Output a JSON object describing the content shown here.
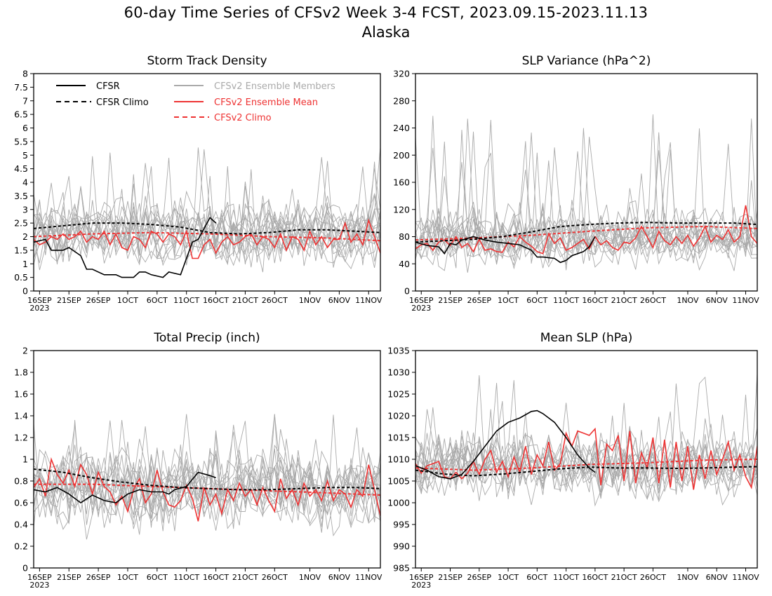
{
  "page": {
    "title": "60-day Time Series of CFSv2 Week 3-4 FCST, 2023.09.15-2023.11.13",
    "subtitle": "Alaska"
  },
  "colors": {
    "cfsr": "#000000",
    "members": "#aaaaaa",
    "ens_mean": "#ee3333",
    "cfsv2_climo": "#ee3333"
  },
  "legend": {
    "cfsr": "CFSR",
    "cfsr_climo": "CFSR Climo",
    "members": "CFSv2 Ensemble Members",
    "ens_mean": "CFSv2 Ensemble Mean",
    "cfsv2_climo": "CFSv2 Climo"
  },
  "x_axis": {
    "tick_labels": [
      "16SEP",
      "21SEP",
      "26SEP",
      "1OCT",
      "6OCT",
      "11OCT",
      "16OCT",
      "21OCT",
      "26OCT",
      "1NOV",
      "6NOV",
      "11NOV"
    ],
    "tick_days": [
      1,
      6,
      11,
      16,
      21,
      26,
      31,
      36,
      41,
      47,
      52,
      57
    ],
    "year_label": "2023",
    "day_range": [
      0,
      59
    ]
  },
  "chart_data": [
    {
      "type": "line",
      "title": "Storm Track Density",
      "ylim": [
        0,
        8
      ],
      "yticks": [
        "0",
        "0.5",
        "1",
        "1.5",
        "2",
        "2.5",
        "3",
        "3.5",
        "4",
        "4.5",
        "5",
        "5.5",
        "6",
        "6.5",
        "7",
        "7.5",
        "8"
      ],
      "member_spread": {
        "center": 2.1,
        "spread": 0.75,
        "peak": 5.3
      },
      "series": [
        {
          "name": "CFSR",
          "style": "solid",
          "color": "#000000",
          "x": [
            0,
            2,
            3,
            5,
            6,
            8,
            9,
            10,
            12,
            14,
            15,
            17,
            18,
            19,
            20,
            22,
            23,
            25,
            27,
            28,
            30,
            31
          ],
          "y": [
            1.8,
            1.9,
            1.5,
            1.5,
            1.6,
            1.3,
            0.8,
            0.8,
            0.6,
            0.6,
            0.5,
            0.5,
            0.7,
            0.7,
            0.6,
            0.5,
            0.7,
            0.6,
            1.8,
            1.9,
            2.7,
            2.5
          ]
        },
        {
          "name": "CFSR Climo",
          "style": "dashed",
          "color": "#000000",
          "x": [
            0,
            5,
            10,
            15,
            20,
            25,
            30,
            35,
            40,
            45,
            50,
            55,
            59
          ],
          "y": [
            2.3,
            2.4,
            2.5,
            2.5,
            2.45,
            2.35,
            2.15,
            2.1,
            2.15,
            2.25,
            2.25,
            2.2,
            2.15
          ]
        },
        {
          "name": "CFSv2 Ensemble Mean",
          "style": "solid",
          "color": "#ee3333",
          "x": [
            0,
            1,
            2,
            3,
            4,
            5,
            6,
            7,
            8,
            9,
            10,
            11,
            12,
            13,
            14,
            15,
            16,
            17,
            18,
            19,
            20,
            21,
            22,
            23,
            24,
            25,
            26,
            27,
            28,
            29,
            30,
            31,
            32,
            33,
            34,
            35,
            36,
            37,
            38,
            39,
            40,
            41,
            42,
            43,
            44,
            45,
            46,
            47,
            48,
            49,
            50,
            51,
            52,
            53,
            54,
            55,
            56,
            57,
            58,
            59
          ],
          "y": [
            1.9,
            1.7,
            1.8,
            2.0,
            1.9,
            2.1,
            1.9,
            2.0,
            2.2,
            1.8,
            2.0,
            1.9,
            2.2,
            1.7,
            2.1,
            1.6,
            1.5,
            2.0,
            1.9,
            1.6,
            2.2,
            2.1,
            1.8,
            2.1,
            2.0,
            1.7,
            2.2,
            1.2,
            1.2,
            1.7,
            1.9,
            1.4,
            1.8,
            2.0,
            1.7,
            1.8,
            2.0,
            2.1,
            1.7,
            2.0,
            1.9,
            1.6,
            2.1,
            1.5,
            2.0,
            1.9,
            1.5,
            2.2,
            1.7,
            2.0,
            1.6,
            1.9,
            1.9,
            2.5,
            1.8,
            2.1,
            1.7,
            2.6,
            2.0,
            1.4
          ]
        },
        {
          "name": "CFSv2 Climo",
          "style": "dashed",
          "color": "#ee3333",
          "x": [
            0,
            10,
            20,
            30,
            40,
            50,
            59
          ],
          "y": [
            2.0,
            2.1,
            2.15,
            2.1,
            2.0,
            1.95,
            1.85
          ]
        }
      ]
    },
    {
      "type": "line",
      "title": "SLP Variance (hPa^2)",
      "ylim": [
        0,
        320
      ],
      "yticks": [
        "0",
        "40",
        "80",
        "120",
        "160",
        "200",
        "240",
        "280",
        "320"
      ],
      "member_spread": {
        "center": 78,
        "spread": 25,
        "peak": 263
      },
      "series": [
        {
          "name": "CFSR",
          "style": "solid",
          "color": "#000000",
          "x": [
            0,
            2,
            4,
            5,
            6,
            7,
            8,
            10,
            12,
            14,
            16,
            18,
            20,
            21,
            22,
            24,
            25,
            26,
            27,
            28,
            29,
            30,
            31
          ],
          "y": [
            72,
            67,
            65,
            55,
            70,
            68,
            75,
            80,
            75,
            72,
            70,
            68,
            60,
            50,
            50,
            48,
            42,
            45,
            52,
            55,
            58,
            65,
            80
          ]
        },
        {
          "name": "CFSR Climo",
          "style": "dashed",
          "color": "#000000",
          "x": [
            0,
            5,
            10,
            15,
            20,
            25,
            30,
            35,
            40,
            45,
            50,
            55,
            59
          ],
          "y": [
            72,
            74,
            76,
            80,
            87,
            95,
            98,
            100,
            101,
            100,
            100,
            100,
            98
          ]
        },
        {
          "name": "CFSv2 Ensemble Mean",
          "style": "solid",
          "color": "#ee3333",
          "x": [
            0,
            1,
            2,
            3,
            4,
            5,
            6,
            7,
            8,
            9,
            10,
            11,
            12,
            13,
            14,
            15,
            16,
            17,
            18,
            19,
            20,
            21,
            22,
            23,
            24,
            25,
            26,
            27,
            28,
            29,
            30,
            31,
            32,
            33,
            34,
            35,
            36,
            37,
            38,
            39,
            40,
            41,
            42,
            43,
            44,
            45,
            46,
            47,
            48,
            49,
            50,
            51,
            52,
            53,
            54,
            55,
            56,
            57,
            58,
            59
          ],
          "y": [
            62,
            68,
            70,
            60,
            72,
            75,
            67,
            80,
            64,
            70,
            58,
            76,
            60,
            62,
            58,
            57,
            72,
            65,
            80,
            72,
            66,
            58,
            55,
            84,
            70,
            78,
            60,
            64,
            70,
            76,
            62,
            80,
            68,
            74,
            64,
            60,
            72,
            70,
            78,
            95,
            80,
            64,
            88,
            74,
            68,
            80,
            70,
            82,
            66,
            78,
            95,
            72,
            82,
            76,
            90,
            72,
            80,
            126,
            80,
            70
          ]
        },
        {
          "name": "CFSv2 Climo",
          "style": "dashed",
          "color": "#ee3333",
          "x": [
            0,
            10,
            20,
            30,
            40,
            50,
            59
          ],
          "y": [
            75,
            78,
            82,
            88,
            93,
            95,
            92
          ]
        }
      ]
    },
    {
      "type": "line",
      "title": "Total Precip (inch)",
      "ylim": [
        0,
        2
      ],
      "yticks": [
        "0",
        "0.2",
        "0.4",
        "0.6",
        "0.8",
        "1",
        "1.2",
        "1.4",
        "1.6",
        "1.8",
        "2"
      ],
      "member_spread": {
        "center": 0.72,
        "spread": 0.22,
        "peak": 1.42
      },
      "series": [
        {
          "name": "CFSR",
          "style": "solid",
          "color": "#000000",
          "x": [
            0,
            2,
            4,
            6,
            8,
            10,
            12,
            14,
            16,
            18,
            20,
            22,
            23,
            24,
            26,
            28,
            30,
            31
          ],
          "y": [
            0.72,
            0.7,
            0.74,
            0.68,
            0.6,
            0.67,
            0.62,
            0.6,
            0.68,
            0.72,
            0.7,
            0.7,
            0.68,
            0.72,
            0.75,
            0.88,
            0.85,
            0.83
          ]
        },
        {
          "name": "CFSR Climo",
          "style": "dashed",
          "color": "#000000",
          "x": [
            0,
            5,
            10,
            15,
            20,
            25,
            30,
            35,
            40,
            45,
            50,
            55,
            59
          ],
          "y": [
            0.91,
            0.88,
            0.83,
            0.79,
            0.76,
            0.74,
            0.73,
            0.72,
            0.72,
            0.73,
            0.74,
            0.74,
            0.73
          ]
        },
        {
          "name": "CFSv2 Ensemble Mean",
          "style": "solid",
          "color": "#ee3333",
          "x": [
            0,
            1,
            2,
            3,
            4,
            5,
            6,
            7,
            8,
            9,
            10,
            11,
            12,
            13,
            14,
            15,
            16,
            17,
            18,
            19,
            20,
            21,
            22,
            23,
            24,
            25,
            26,
            27,
            28,
            29,
            30,
            31,
            32,
            33,
            34,
            35,
            36,
            37,
            38,
            39,
            40,
            41,
            42,
            43,
            44,
            45,
            46,
            47,
            48,
            49,
            50,
            51,
            52,
            53,
            54,
            55,
            56,
            57,
            58,
            59
          ],
          "y": [
            0.74,
            0.82,
            0.66,
            1.0,
            0.86,
            0.78,
            0.9,
            0.75,
            0.95,
            0.86,
            0.68,
            0.88,
            0.75,
            0.7,
            0.58,
            0.66,
            0.52,
            0.72,
            0.82,
            0.6,
            0.68,
            0.9,
            0.7,
            0.58,
            0.56,
            0.62,
            0.76,
            0.64,
            0.43,
            0.74,
            0.58,
            0.68,
            0.5,
            0.72,
            0.62,
            0.78,
            0.66,
            0.72,
            0.58,
            0.74,
            0.62,
            0.52,
            0.82,
            0.64,
            0.72,
            0.58,
            0.78,
            0.66,
            0.72,
            0.62,
            0.8,
            0.62,
            0.72,
            0.68,
            0.56,
            0.72,
            0.66,
            0.95,
            0.72,
            0.48
          ]
        },
        {
          "name": "CFSv2 Climo",
          "style": "dashed",
          "color": "#ee3333",
          "x": [
            0,
            10,
            20,
            30,
            40,
            50,
            59
          ],
          "y": [
            0.77,
            0.77,
            0.75,
            0.73,
            0.71,
            0.69,
            0.67
          ]
        }
      ]
    },
    {
      "type": "line",
      "title": "Mean SLP (hPa)",
      "ylim": [
        985,
        1035
      ],
      "yticks": [
        "985",
        "990",
        "995",
        "1000",
        "1005",
        "1010",
        "1015",
        "1020",
        "1025",
        "1030",
        "1035"
      ],
      "member_spread": {
        "center": 1008.5,
        "spread": 4.5,
        "peak": 1030
      },
      "series": [
        {
          "name": "CFSR",
          "style": "solid",
          "color": "#000000",
          "x": [
            0,
            2,
            4,
            6,
            8,
            10,
            12,
            14,
            16,
            18,
            20,
            21,
            22,
            24,
            26,
            28,
            30,
            31
          ],
          "y": [
            1008.5,
            1007.5,
            1006.0,
            1005.5,
            1006.5,
            1009.5,
            1013,
            1016.5,
            1018.5,
            1019.5,
            1021,
            1021.2,
            1020.5,
            1018.5,
            1015,
            1011,
            1008,
            1007
          ]
        },
        {
          "name": "CFSR Climo",
          "style": "dashed",
          "color": "#000000",
          "x": [
            0,
            5,
            10,
            15,
            20,
            25,
            30,
            35,
            40,
            45,
            50,
            55,
            59
          ],
          "y": [
            1007.5,
            1006.6,
            1006.2,
            1006.6,
            1007.2,
            1007.8,
            1008.2,
            1008.0,
            1008.0,
            1007.9,
            1008.0,
            1008.2,
            1008.3
          ]
        },
        {
          "name": "CFSv2 Ensemble Mean",
          "style": "solid",
          "color": "#ee3333",
          "x": [
            0,
            1,
            2,
            3,
            4,
            5,
            6,
            7,
            8,
            9,
            10,
            11,
            12,
            13,
            14,
            15,
            16,
            17,
            18,
            19,
            20,
            21,
            22,
            23,
            24,
            25,
            26,
            27,
            28,
            29,
            30,
            31,
            32,
            33,
            34,
            35,
            36,
            37,
            38,
            39,
            40,
            41,
            42,
            43,
            44,
            45,
            46,
            47,
            48,
            49,
            50,
            51,
            52,
            53,
            54,
            55,
            56,
            57,
            58,
            59
          ],
          "y": [
            1009,
            1006.8,
            1008.5,
            1009,
            1009.5,
            1006,
            1005.5,
            1007,
            1005.5,
            1006.8,
            1009.5,
            1006.5,
            1010,
            1012,
            1007,
            1009.5,
            1006,
            1010.5,
            1007,
            1013,
            1006.5,
            1011,
            1008.5,
            1014,
            1007.5,
            1009,
            1016,
            1013,
            1016.5,
            1016,
            1015.5,
            1017,
            1004,
            1013.5,
            1012,
            1015.5,
            1005,
            1016.5,
            1004.5,
            1011.5,
            1008,
            1015,
            1004.5,
            1014.5,
            1003.5,
            1014,
            1005,
            1013,
            1003,
            1011,
            1005.5,
            1012,
            1006.5,
            1010,
            1014,
            1007.5,
            1011,
            1006,
            1003.5,
            1013
          ]
        },
        {
          "name": "CFSv2 Climo",
          "style": "dashed",
          "color": "#ee3333",
          "x": [
            0,
            10,
            20,
            30,
            40,
            50,
            59
          ],
          "y": [
            1008,
            1007.5,
            1008,
            1008.8,
            1009.2,
            1009.8,
            1010
          ]
        }
      ]
    }
  ]
}
